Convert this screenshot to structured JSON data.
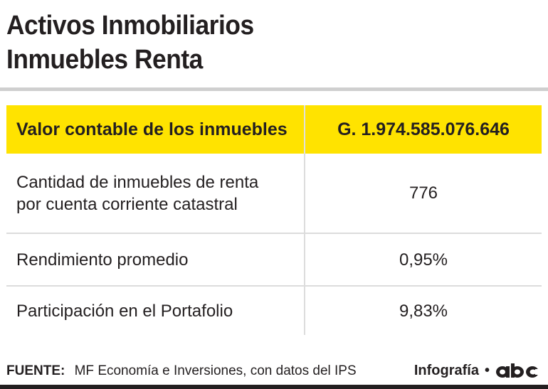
{
  "title_line1": "Activos Inmobiliarios",
  "title_line2": "Inmuebles Renta",
  "chart_data": {
    "type": "table",
    "rows": [
      {
        "label": "Valor contable de los inmuebles",
        "value": "G. 1.974.585.076.646"
      },
      {
        "label_line1": "Cantidad de inmuebles de renta",
        "label_line2": "por cuenta corriente catastral",
        "value": "776"
      },
      {
        "label": "Rendimiento promedio",
        "value": "0,95%"
      },
      {
        "label": "Participación en el Portafolio",
        "value": "9,83%"
      }
    ],
    "highlight_color": "#ffe300"
  },
  "footer": {
    "source_label": "FUENTE:",
    "source_text": "MF Economía e Inversiones, con datos del IPS",
    "credit_text": "Infografía",
    "credit_separator": "•",
    "logo_icon": "abc-logo-icon"
  }
}
